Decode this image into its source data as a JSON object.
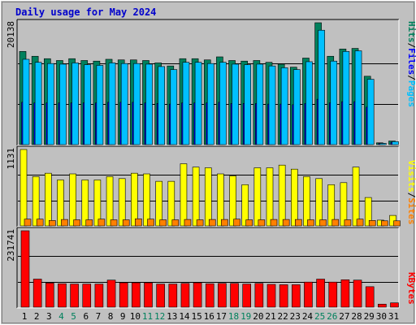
{
  "title": "Daily usage for May 2024",
  "colors": {
    "background": "#c0c0c0",
    "hits": "#00805c",
    "files": "#0000ff",
    "pages": "#00c0ff",
    "visits": "#ffff00",
    "sites": "#ff8000",
    "kbytes": "#ff0000",
    "weekend_label": "#00805c",
    "weekday_label": "#000000",
    "title": "#0000cc"
  },
  "legend": {
    "hits": "Hits",
    "files": "Files",
    "pages": "Pages",
    "visits": "Visits",
    "sites": "Sites",
    "kbytes": "KBytes",
    "sep1": "/",
    "sep2": "/",
    "sep3": "/"
  },
  "chart_data": [
    {
      "type": "bar",
      "panel": "hits-files-pages",
      "ymax_label": "20138",
      "ylim": [
        0,
        20138
      ],
      "categories": [
        "1",
        "2",
        "3",
        "4",
        "5",
        "6",
        "7",
        "8",
        "9",
        "10",
        "11",
        "12",
        "13",
        "14",
        "15",
        "16",
        "17",
        "18",
        "19",
        "20",
        "21",
        "22",
        "23",
        "24",
        "25",
        "26",
        "27",
        "28",
        "29",
        "30",
        "31"
      ],
      "weekend_days": [
        "4",
        "5",
        "11",
        "12",
        "18",
        "19",
        "25",
        "26"
      ],
      "series": [
        {
          "name": "Hits",
          "values": [
            15400,
            14600,
            14200,
            13900,
            14200,
            13900,
            13800,
            14100,
            14000,
            14000,
            13900,
            13500,
            13000,
            14200,
            14200,
            14000,
            14500,
            13900,
            13800,
            13900,
            13600,
            13300,
            12800,
            14300,
            20138,
            14600,
            15800,
            15900,
            11300,
            300,
            600
          ]
        },
        {
          "name": "Files",
          "values": [
            7000,
            6900,
            6900,
            6900,
            6900,
            6900,
            6900,
            7000,
            7000,
            7000,
            6900,
            6800,
            6700,
            6900,
            6900,
            6900,
            7000,
            6800,
            6800,
            6800,
            6700,
            6700,
            6600,
            6800,
            7500,
            6900,
            7100,
            7100,
            6200,
            200,
            400
          ]
        },
        {
          "name": "Pages",
          "values": [
            14100,
            13600,
            13400,
            13300,
            13500,
            13200,
            13100,
            13500,
            13400,
            13400,
            13300,
            12900,
            12400,
            13600,
            13600,
            13400,
            13600,
            13300,
            13200,
            13300,
            13000,
            12700,
            12400,
            13700,
            18900,
            13800,
            15400,
            15500,
            10800,
            200,
            500
          ]
        }
      ]
    },
    {
      "type": "bar",
      "panel": "visits-sites",
      "ymax_label": "1131",
      "ylim": [
        0,
        1131
      ],
      "categories": [
        "1",
        "2",
        "3",
        "4",
        "5",
        "6",
        "7",
        "8",
        "9",
        "10",
        "11",
        "12",
        "13",
        "14",
        "15",
        "16",
        "17",
        "18",
        "19",
        "20",
        "21",
        "22",
        "23",
        "24",
        "25",
        "26",
        "27",
        "28",
        "29",
        "30",
        "31"
      ],
      "series": [
        {
          "name": "Visits",
          "values": [
            1131,
            730,
            780,
            680,
            770,
            680,
            680,
            730,
            700,
            780,
            770,
            660,
            660,
            920,
            870,
            860,
            770,
            740,
            610,
            860,
            860,
            900,
            840,
            730,
            700,
            610,
            640,
            870,
            420,
            85,
            155
          ]
        },
        {
          "name": "Sites",
          "values": [
            100,
            100,
            80,
            95,
            90,
            90,
            100,
            90,
            90,
            105,
            100,
            90,
            90,
            95,
            90,
            95,
            95,
            100,
            90,
            90,
            95,
            95,
            95,
            90,
            90,
            95,
            90,
            100,
            80,
            75,
            75
          ]
        }
      ]
    },
    {
      "type": "bar",
      "panel": "kbytes",
      "ymax_label": "231741",
      "ylim": [
        0,
        231741
      ],
      "categories": [
        "1",
        "2",
        "3",
        "4",
        "5",
        "6",
        "7",
        "8",
        "9",
        "10",
        "11",
        "12",
        "13",
        "14",
        "15",
        "16",
        "17",
        "18",
        "19",
        "20",
        "21",
        "22",
        "23",
        "24",
        "25",
        "26",
        "27",
        "28",
        "29",
        "30",
        "31"
      ],
      "series": [
        {
          "name": "KBytes",
          "values": [
            231741,
            85000,
            73000,
            71000,
            70000,
            70000,
            70000,
            82000,
            74000,
            74000,
            74000,
            70000,
            70000,
            72000,
            74000,
            71000,
            72000,
            72000,
            70000,
            72000,
            69000,
            68000,
            68000,
            76000,
            85000,
            76000,
            83000,
            82000,
            62000,
            9000,
            13000
          ]
        }
      ]
    }
  ]
}
